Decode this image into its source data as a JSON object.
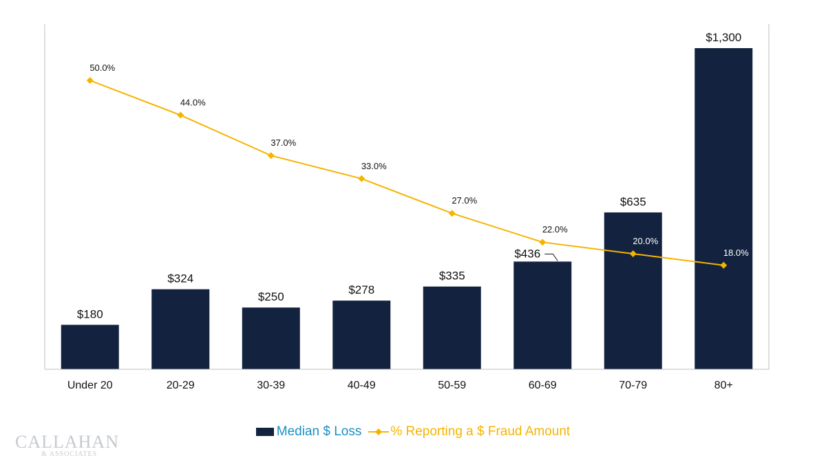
{
  "chart_data": {
    "type": "bar",
    "categories": [
      "Under 20",
      "20-29",
      "30-39",
      "40-49",
      "50-59",
      "60-69",
      "70-79",
      "80+"
    ],
    "series": [
      {
        "name": "Median $ Loss",
        "type": "bar",
        "values": [
          180,
          324,
          250,
          278,
          335,
          436,
          635,
          1300
        ],
        "labels": [
          "$180",
          "$324",
          "$250",
          "$278",
          "$335",
          "$436",
          "$635",
          "$1,300"
        ],
        "color": "#13233f"
      },
      {
        "name": "% Reporting a $ Fraud Amount",
        "type": "line",
        "values": [
          50.0,
          44.0,
          37.0,
          33.0,
          27.0,
          22.0,
          20.0,
          18.0
        ],
        "labels": [
          "50.0%",
          "44.0%",
          "37.0%",
          "33.0%",
          "27.0%",
          "22.0%",
          "20.0%",
          "18.0%"
        ],
        "color": "#f5b400"
      }
    ],
    "title": "",
    "xlabel": "",
    "ylabel": "",
    "ylim_bar": [
      0,
      1400
    ],
    "ylim_line": [
      0,
      60
    ],
    "grid": false,
    "legend_position": "bottom"
  },
  "legend": {
    "bar_label": "Median $ Loss",
    "line_label": "% Reporting a $ Fraud Amount",
    "bar_text_color": "#1a8fc4",
    "line_text_color": "#f5b400"
  },
  "brand": {
    "name": "CALLAHAN",
    "sub": "& ASSOCIATES",
    "color": "#c5c9cf"
  }
}
